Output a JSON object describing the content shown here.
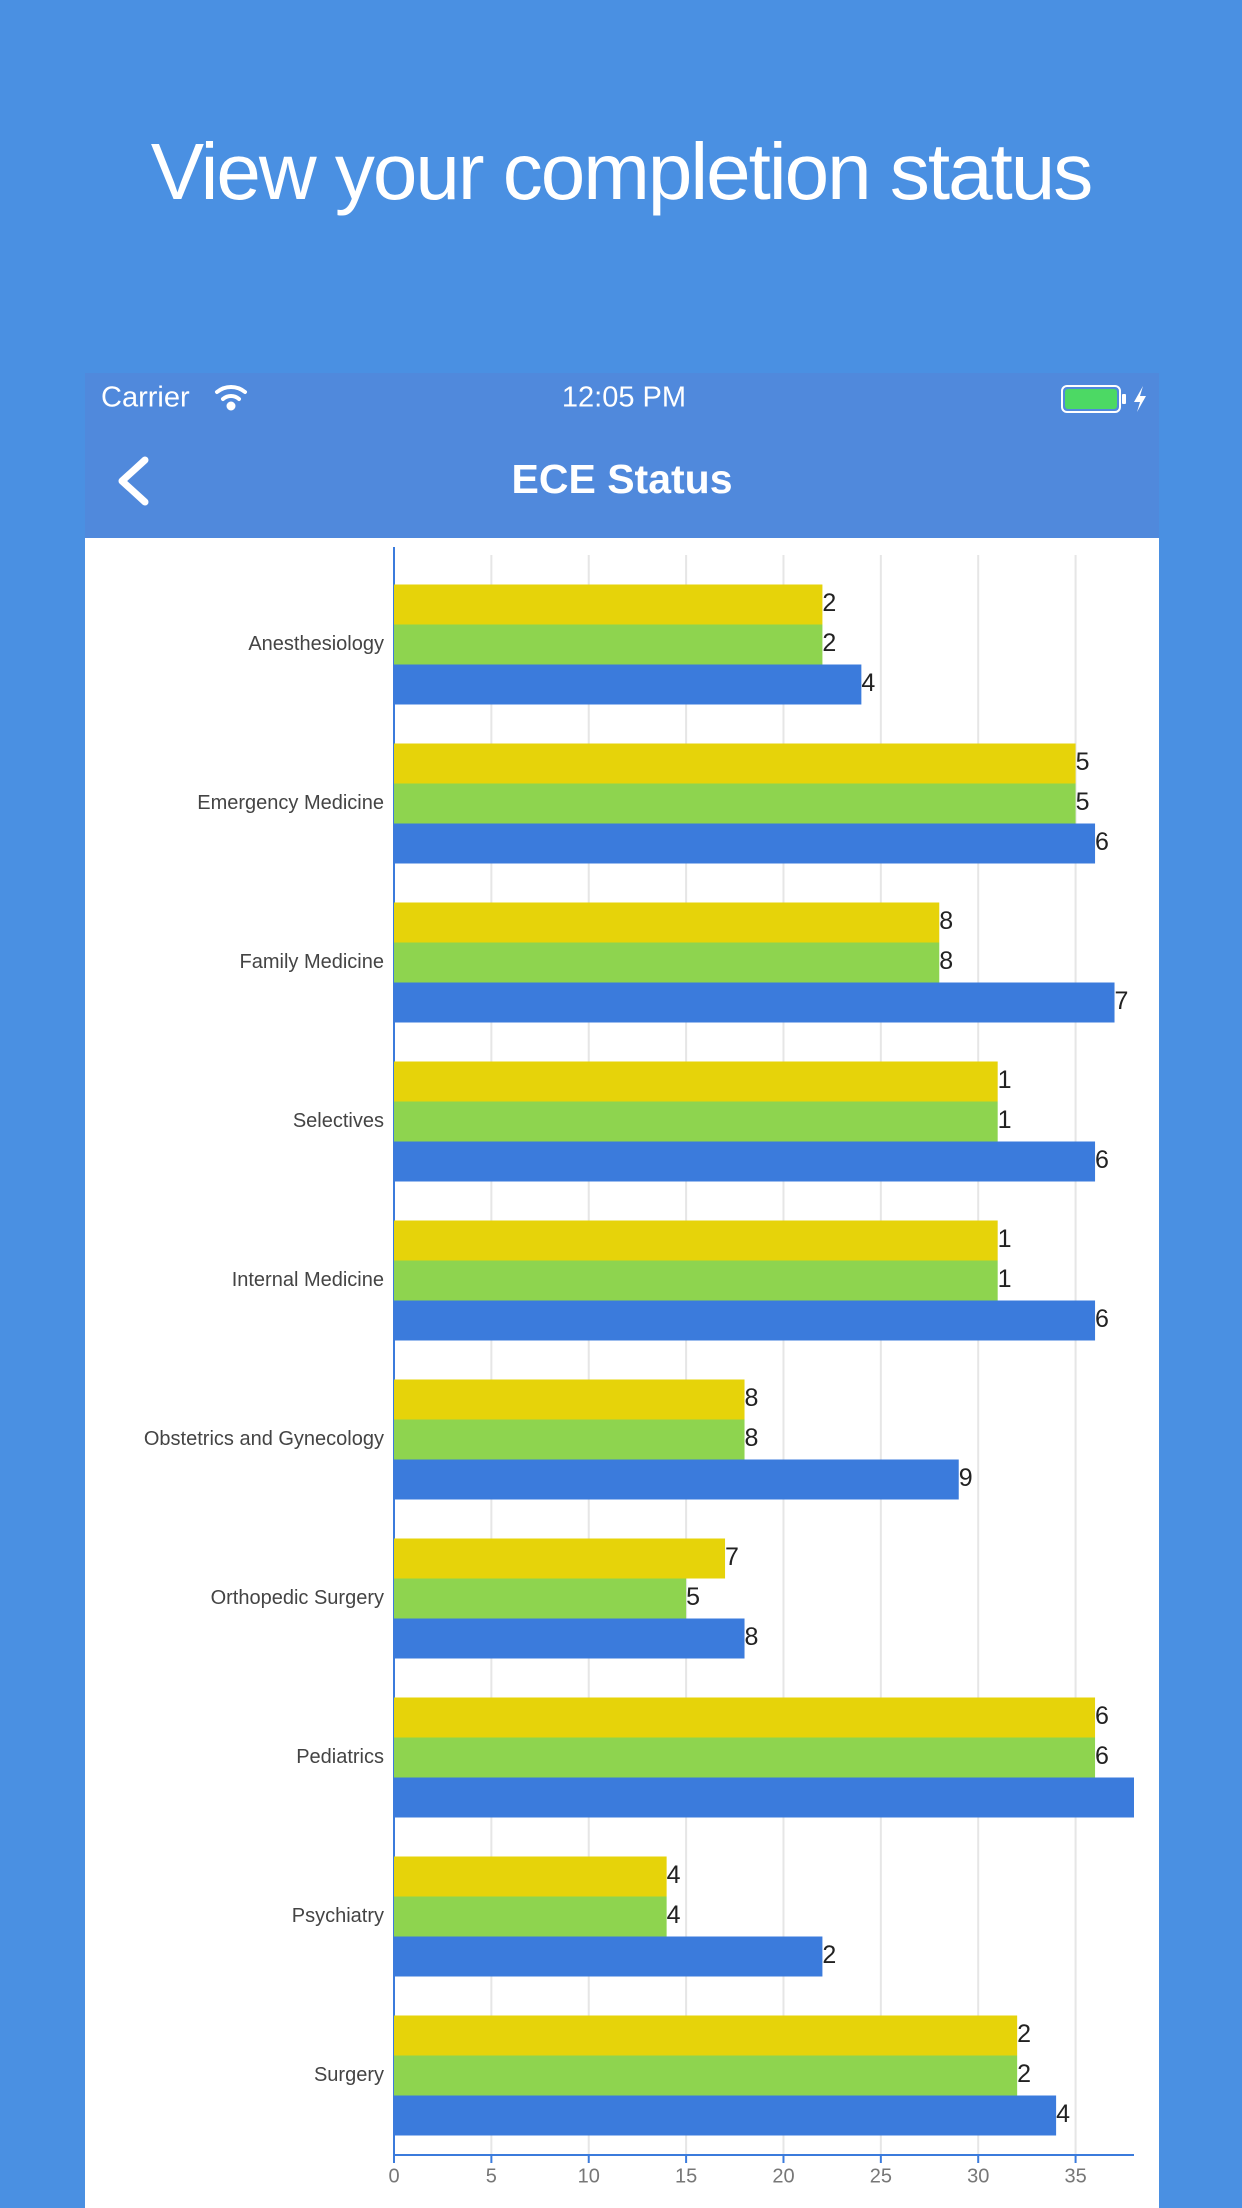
{
  "header": {
    "title": "View your completion status"
  },
  "status_bar": {
    "carrier": "Carrier",
    "time": "12:05 PM"
  },
  "nav": {
    "title": "ECE Status"
  },
  "chart_data": {
    "type": "bar",
    "orientation": "horizontal",
    "categories": [
      "Anesthesiology",
      "Emergency Medicine",
      "Family Medicine",
      "Selectives",
      "Internal Medicine",
      "Obstetrics and Gynecology",
      "Orthopedic Surgery",
      "Pediatrics",
      "Psychiatry",
      "Surgery"
    ],
    "series": [
      {
        "color": "#e6d30a",
        "values": [
          22,
          35,
          28,
          31,
          31,
          18,
          17,
          36,
          14,
          32
        ]
      },
      {
        "color": "#8ed44f",
        "values": [
          22,
          35,
          28,
          31,
          31,
          18,
          15,
          36,
          14,
          32
        ]
      },
      {
        "color": "#3b7bdc",
        "values": [
          24,
          36,
          37,
          36,
          36,
          29,
          18,
          38,
          22,
          34
        ]
      }
    ],
    "xlim": [
      0,
      38
    ],
    "xticks": [
      0,
      5,
      10,
      15,
      20,
      25,
      30,
      35
    ],
    "grid": true
  }
}
